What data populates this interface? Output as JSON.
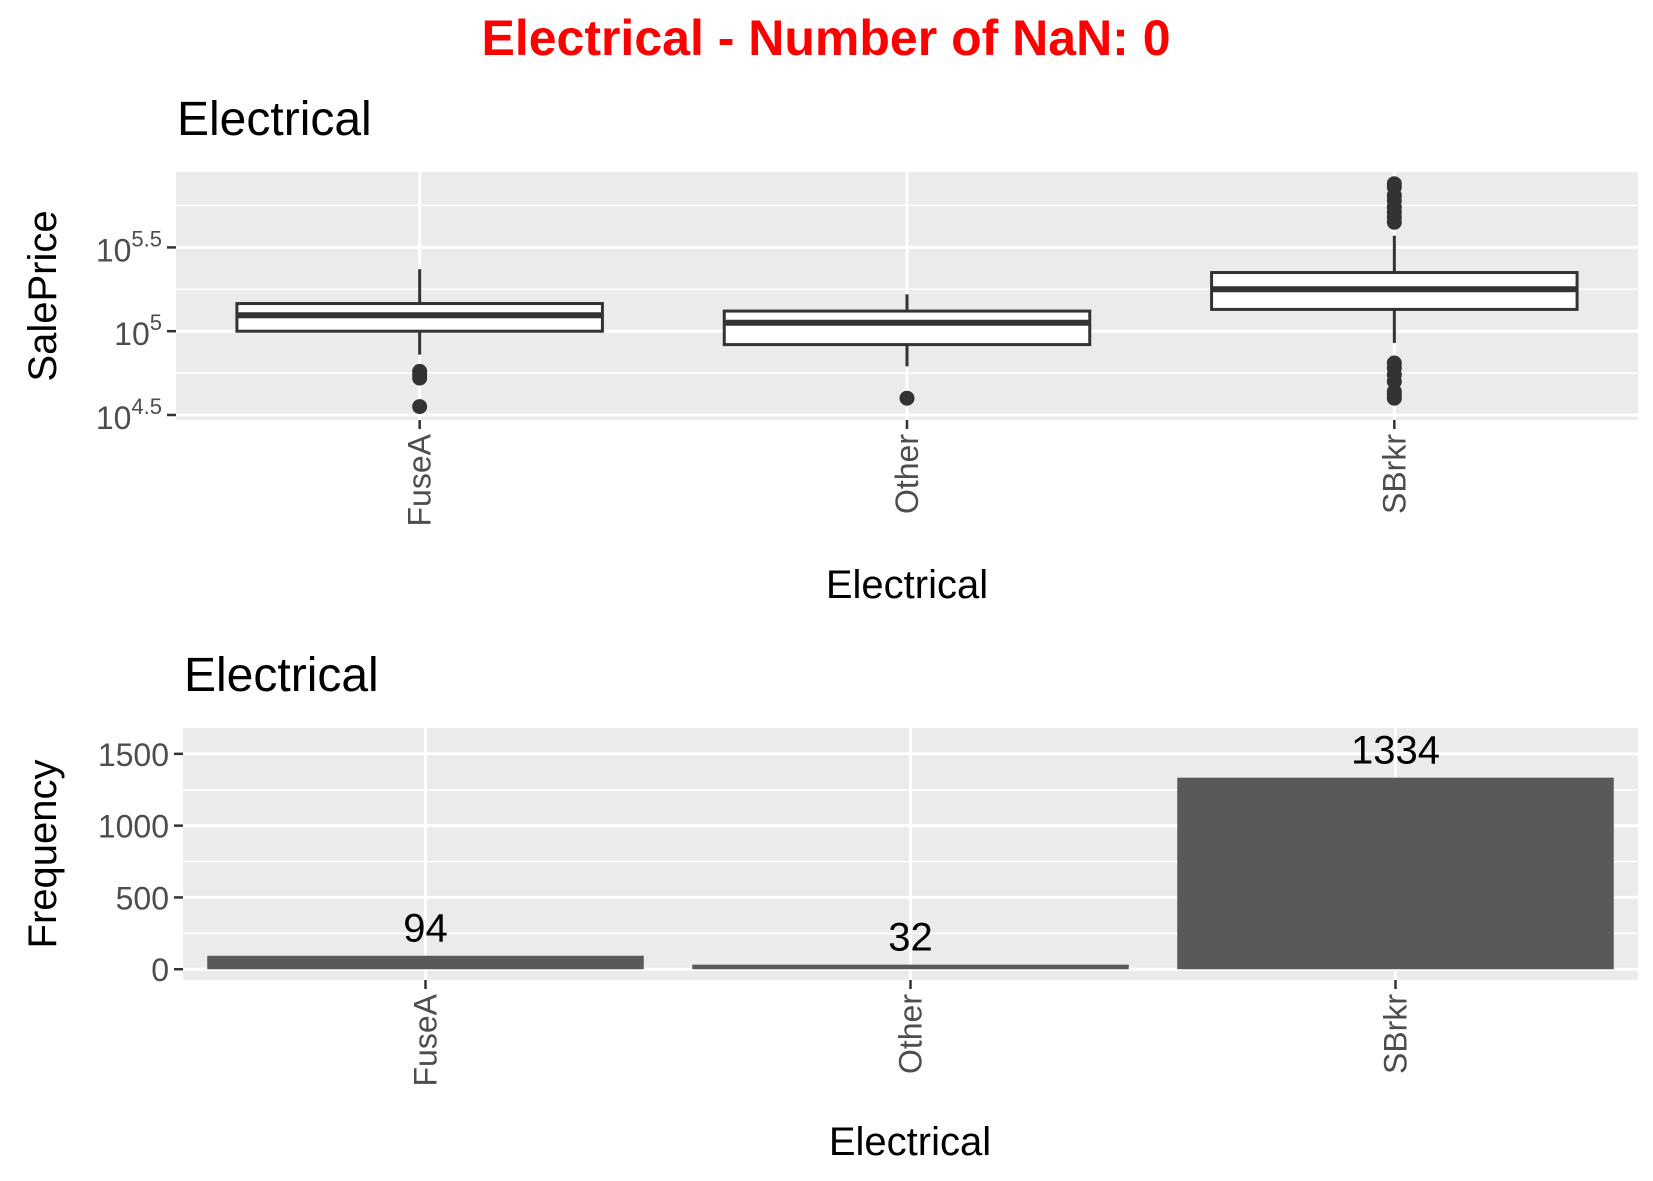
{
  "figure_title": "Electrical - Number of NaN: 0",
  "colors": {
    "title": "#ff0000",
    "panel_bg": "#ebebeb",
    "grid": "#ffffff",
    "bar_fill": "#595959",
    "box_line": "#333333",
    "tick_text": "#4d4d4d",
    "text": "#000000"
  },
  "chart_data": [
    {
      "type": "box",
      "title": "Electrical",
      "xlabel": "Electrical",
      "ylabel": "SalePrice",
      "y_scale": "log10",
      "ylim": [
        4.47,
        5.95
      ],
      "grid": true,
      "yticks": [
        {
          "value": 4.5,
          "base": "10",
          "exp": "4.5"
        },
        {
          "value": 5.0,
          "base": "10",
          "exp": "5"
        },
        {
          "value": 5.5,
          "base": "10",
          "exp": "5.5"
        }
      ],
      "categories": [
        "FuseA",
        "Other",
        "SBrkr"
      ],
      "boxes": [
        {
          "category": "FuseA",
          "q1": 5.0,
          "median": 5.095,
          "q3": 5.165,
          "whisker_low": 4.86,
          "whisker_high": 5.37,
          "outliers": [
            4.72,
            4.74,
            4.76,
            4.55
          ]
        },
        {
          "category": "Other",
          "q1": 4.92,
          "median": 5.05,
          "q3": 5.12,
          "whisker_low": 4.79,
          "whisker_high": 5.22,
          "outliers": [
            4.6
          ]
        },
        {
          "category": "SBrkr",
          "q1": 5.13,
          "median": 5.25,
          "q3": 5.35,
          "whisker_low": 4.93,
          "whisker_high": 5.57,
          "outliers": [
            4.6,
            4.62,
            4.64,
            4.7,
            4.74,
            4.78,
            4.81,
            5.65,
            5.68,
            5.71,
            5.74,
            5.78,
            5.81,
            5.86,
            5.88
          ]
        }
      ]
    },
    {
      "type": "bar",
      "title": "Electrical",
      "xlabel": "Electrical",
      "ylabel": "Frequency",
      "ylim": [
        -75,
        1680
      ],
      "grid": true,
      "yticks": [
        0,
        500,
        1000,
        1500
      ],
      "categories": [
        "FuseA",
        "Other",
        "SBrkr"
      ],
      "values": [
        94,
        32,
        1334
      ],
      "data_labels": [
        "94",
        "32",
        "1334"
      ]
    }
  ]
}
